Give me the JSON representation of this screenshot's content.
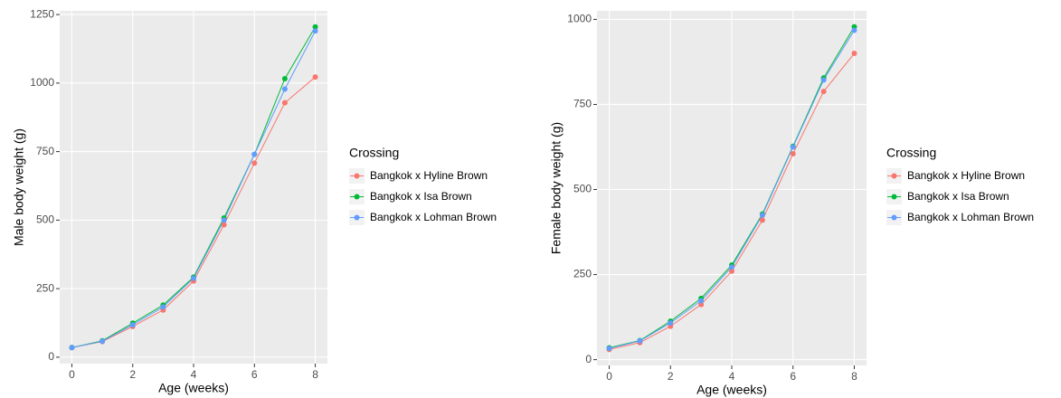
{
  "chart_data": [
    {
      "type": "line",
      "x_label": "Age (weeks)",
      "y_label": "Male body weight (g)",
      "legend_title": "Crossing",
      "x": [
        0,
        1,
        2,
        3,
        4,
        5,
        6,
        7,
        8
      ],
      "xlim": [
        -0.4,
        8.4
      ],
      "xticks": [
        0,
        2,
        4,
        6,
        8
      ],
      "ylim": [
        -23.5,
        1263.5
      ],
      "yticks": [
        0,
        250,
        500,
        750,
        1000,
        1250
      ],
      "grid": true,
      "series": [
        {
          "name": "Bangkok x Hyline Brown",
          "color": "#F8766D",
          "values": [
            35,
            57,
            112,
            172,
            278,
            483,
            708,
            928,
            1022
          ]
        },
        {
          "name": "Bangkok x Isa Brown",
          "color": "#00BA38",
          "values": [
            35,
            60,
            124,
            190,
            292,
            508,
            740,
            1016,
            1205
          ]
        },
        {
          "name": "Bangkok x Lohman Brown",
          "color": "#619CFF",
          "values": [
            35,
            58,
            118,
            183,
            288,
            500,
            740,
            978,
            1190
          ]
        }
      ]
    },
    {
      "type": "line",
      "x_label": "Age (weeks)",
      "y_label": "Female body weight (g)",
      "legend_title": "Crossing",
      "x": [
        0,
        1,
        2,
        3,
        4,
        5,
        6,
        7,
        8
      ],
      "xlim": [
        -0.4,
        8.4
      ],
      "xticks": [
        0,
        2,
        4,
        6,
        8
      ],
      "ylim": [
        -17,
        1025
      ],
      "yticks": [
        0,
        250,
        500,
        750,
        1000
      ],
      "grid": true,
      "series": [
        {
          "name": "Bangkok x Hyline Brown",
          "color": "#F8766D",
          "values": [
            30,
            50,
            98,
            162,
            260,
            410,
            605,
            788,
            900
          ]
        },
        {
          "name": "Bangkok x Isa Brown",
          "color": "#00BA38",
          "values": [
            35,
            56,
            113,
            180,
            278,
            428,
            627,
            828,
            978
          ]
        },
        {
          "name": "Bangkok x Lohman Brown",
          "color": "#619CFF",
          "values": [
            33,
            55,
            108,
            173,
            272,
            425,
            625,
            822,
            968
          ]
        }
      ]
    }
  ]
}
